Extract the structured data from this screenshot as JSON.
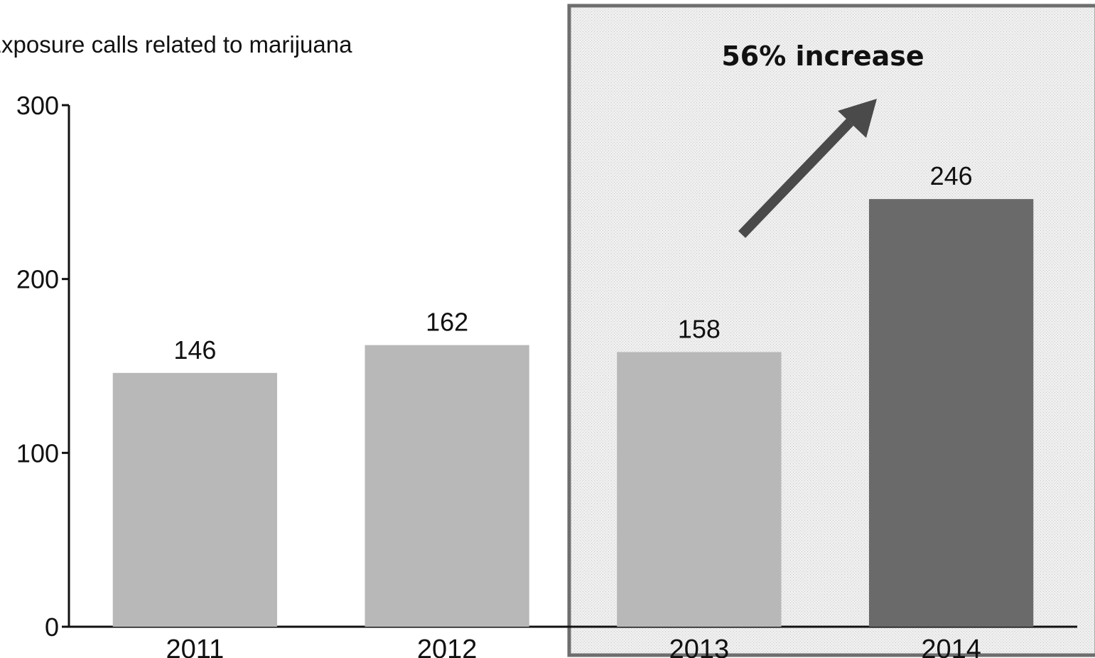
{
  "chart_data": {
    "type": "bar",
    "title": "Exposure calls related to marijuana",
    "categories": [
      "2011",
      "2012",
      "2013",
      "2014"
    ],
    "values": [
      146,
      162,
      158,
      246
    ],
    "value_labels": [
      "146",
      "162",
      "158",
      "246"
    ],
    "ylim": [
      0,
      300
    ],
    "y_ticks": [
      0,
      100,
      200,
      300
    ],
    "y_tick_labels": [
      "0",
      "100",
      "200",
      "300"
    ],
    "xlabel": "",
    "ylabel": "",
    "grid": false,
    "legend": "none",
    "bar_colors": [
      "#b8b8b8",
      "#b8b8b8",
      "#b8b8b8",
      "#6a6a6a"
    ],
    "highlight": {
      "categories": [
        "2013",
        "2014"
      ],
      "label": "56% increase",
      "fill": "#ececec",
      "border": "#6e6e6e"
    },
    "arrow_color": "#4a4a4a"
  }
}
